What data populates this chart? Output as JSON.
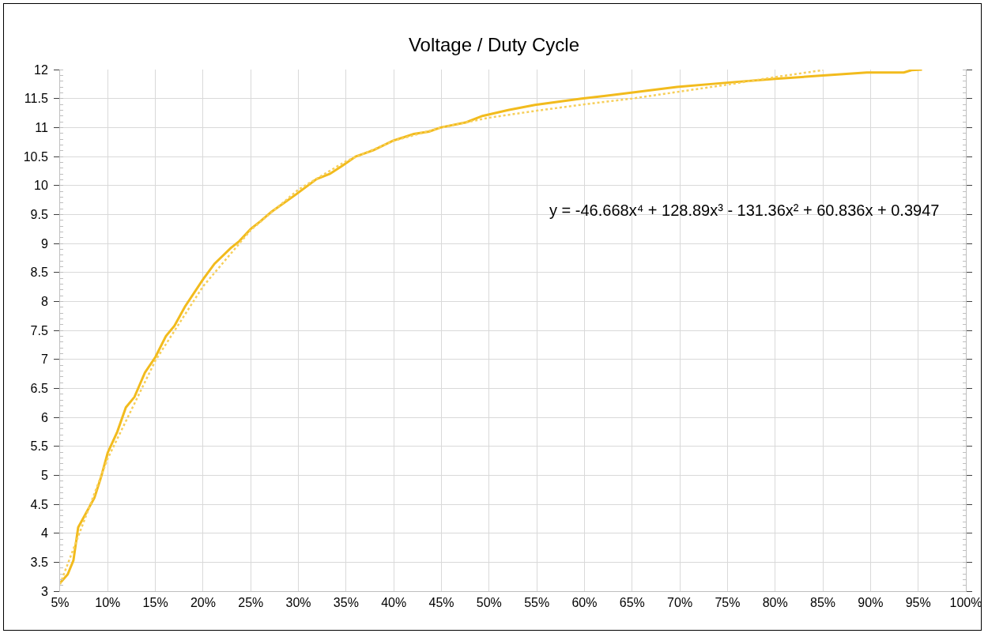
{
  "chart_data": {
    "type": "line",
    "title": "Voltage / Duty Cycle",
    "xlim": [
      5,
      100
    ],
    "xticks": [
      {
        "value": 5,
        "label": "5%"
      },
      {
        "value": 10,
        "label": "10%"
      },
      {
        "value": 15,
        "label": "15%"
      },
      {
        "value": 20,
        "label": "20%"
      },
      {
        "value": 25,
        "label": "25%"
      },
      {
        "value": 30,
        "label": "30%"
      },
      {
        "value": 35,
        "label": "35%"
      },
      {
        "value": 40,
        "label": "40%"
      },
      {
        "value": 45,
        "label": "45%"
      },
      {
        "value": 50,
        "label": "50%"
      },
      {
        "value": 55,
        "label": "55%"
      },
      {
        "value": 60,
        "label": "60%"
      },
      {
        "value": 65,
        "label": "65%"
      },
      {
        "value": 70,
        "label": "70%"
      },
      {
        "value": 75,
        "label": "75%"
      },
      {
        "value": 80,
        "label": "80%"
      },
      {
        "value": 85,
        "label": "85%"
      },
      {
        "value": 90,
        "label": "90%"
      },
      {
        "value": 95,
        "label": "95%"
      },
      {
        "value": 100,
        "label": "100%"
      }
    ],
    "ylim": [
      3,
      12
    ],
    "yticks": [
      3,
      3.5,
      4,
      4.5,
      5,
      5.5,
      6,
      6.5,
      7,
      7.5,
      8,
      8.5,
      9,
      9.5,
      10,
      10.5,
      11,
      11.5,
      12
    ],
    "grid": true,
    "legend": false,
    "marker": "none",
    "annotations": [
      "y = -46.668x⁴ + 128.89x³ - 131.36x² + 60.836x + 0.3947"
    ],
    "series": [
      {
        "color": "#f2bb1d",
        "line_style": "solid",
        "x": [
          5,
          5.8,
          6.4,
          6.9,
          7.7,
          8.6,
          9.3,
          10,
          11,
          11.9,
          12.8,
          13.9,
          15,
          16.1,
          17,
          18.1,
          20,
          21.2,
          22.9,
          23.8,
          25,
          26,
          27.2,
          29.7,
          31.9,
          33.3,
          34.6,
          36,
          37.9,
          39.9,
          42.1,
          43.7,
          44.9,
          47.6,
          49.3,
          52,
          54.8,
          59.7,
          63.4,
          69.7,
          74.7,
          80,
          84.4,
          89.6,
          93.5,
          94.3,
          95.4
        ],
        "values": [
          3.14,
          3.29,
          3.53,
          4.1,
          4.34,
          4.61,
          4.97,
          5.39,
          5.75,
          6.17,
          6.35,
          6.77,
          7.04,
          7.4,
          7.58,
          7.91,
          8.38,
          8.65,
          8.92,
          9.04,
          9.25,
          9.38,
          9.55,
          9.84,
          10.11,
          10.2,
          10.34,
          10.5,
          10.61,
          10.77,
          10.89,
          10.93,
          11,
          11.09,
          11.2,
          11.3,
          11.39,
          11.5,
          11.57,
          11.7,
          11.77,
          11.84,
          11.89,
          11.95,
          11.95,
          11.99,
          12
        ]
      },
      {
        "color": "#f7cf5a",
        "line_style": "dotted",
        "x": [
          5,
          10,
          15,
          20,
          25,
          30,
          35,
          40,
          45,
          50,
          55,
          60,
          65,
          70,
          75,
          80,
          85
        ],
        "values": [
          3.12,
          5.29,
          6.98,
          8.26,
          9.23,
          9.93,
          10.42,
          10.77,
          11,
          11.17,
          11.29,
          11.4,
          11.5,
          11.62,
          11.74,
          11.87,
          11.99
        ]
      }
    ]
  }
}
